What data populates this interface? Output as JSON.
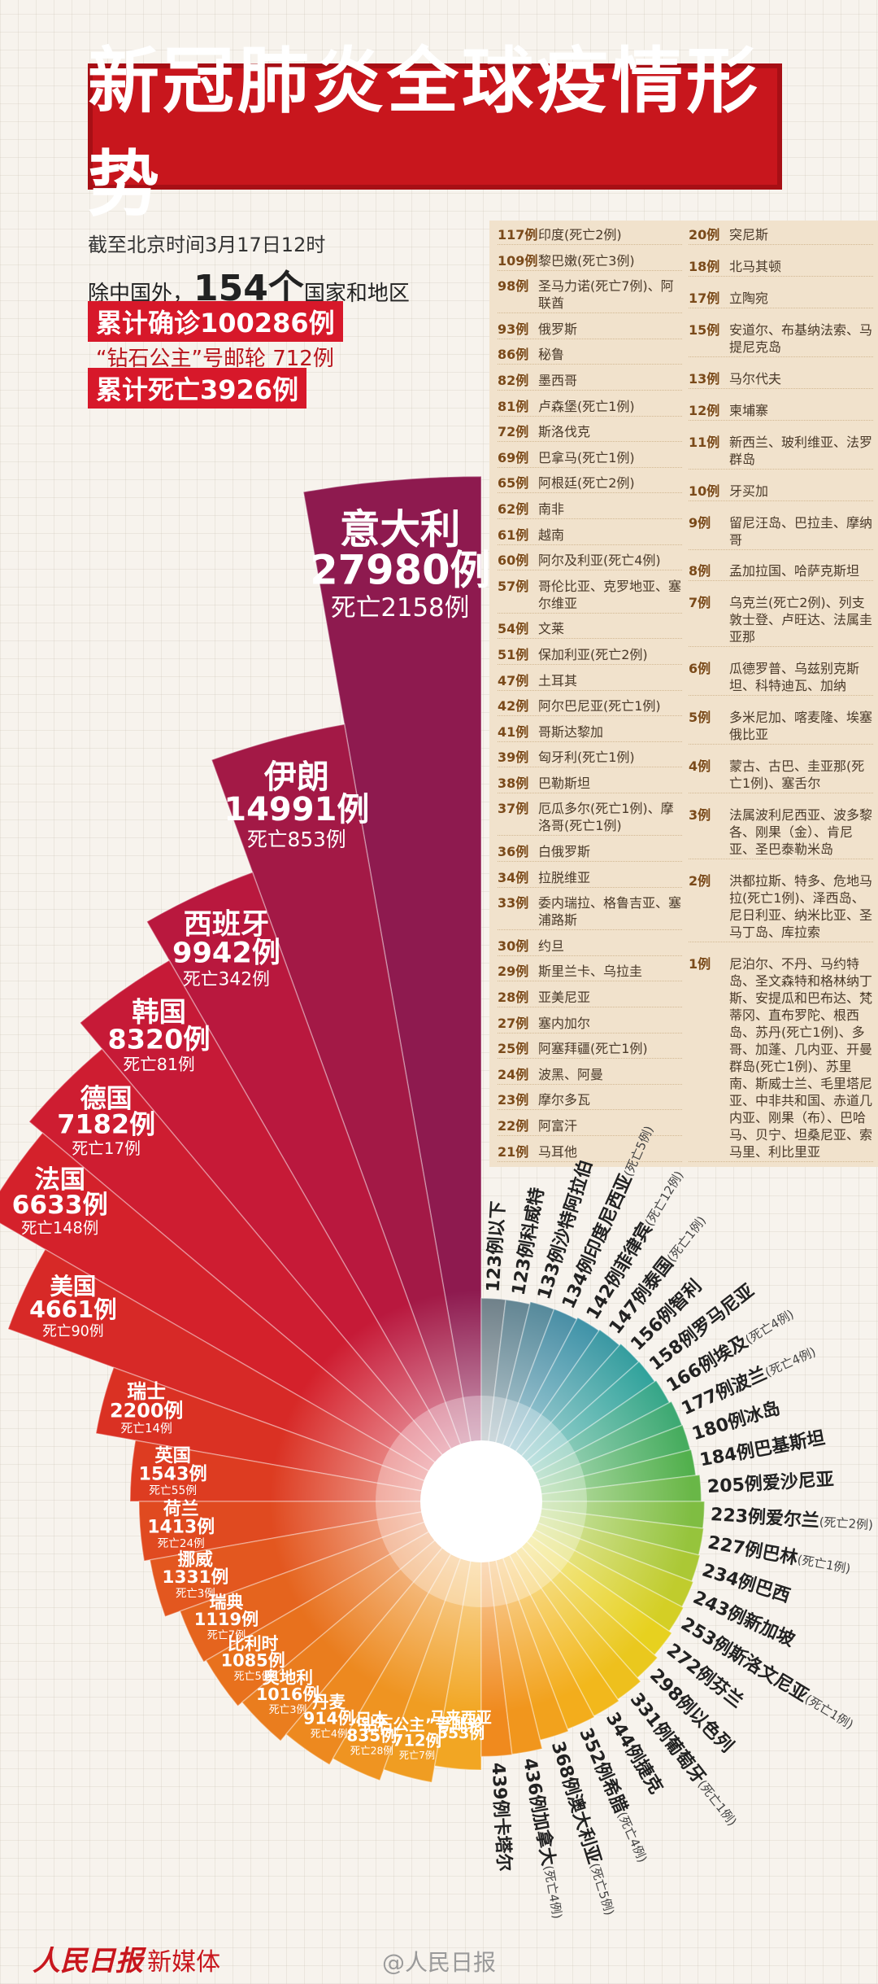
{
  "header": {
    "title": "新冠肺炎全球疫情形势"
  },
  "summary": {
    "time": "截至北京时间3月17日12时",
    "scope_prefix": "除中国外，",
    "scope_number": "154个",
    "scope_suffix": "国家和地区",
    "confirmed": "累计确诊100286例",
    "cruise": "“钻石公主”号邮轮 712例",
    "deaths": "累计死亡3926例"
  },
  "list": {
    "columns": [
      [
        {
          "count": "117例",
          "text": "印度(死亡2例)"
        },
        {
          "count": "109例",
          "text": "黎巴嫩(死亡3例)"
        },
        {
          "count": "98例",
          "text": "圣马力诺(死亡7例)、阿联酋"
        },
        {
          "count": "93例",
          "text": "俄罗斯"
        },
        {
          "count": "86例",
          "text": "秘鲁"
        },
        {
          "count": "82例",
          "text": "墨西哥"
        },
        {
          "count": "81例",
          "text": "卢森堡(死亡1例)"
        },
        {
          "count": "72例",
          "text": "斯洛伐克"
        },
        {
          "count": "69例",
          "text": "巴拿马(死亡1例)"
        },
        {
          "count": "65例",
          "text": "阿根廷(死亡2例)"
        },
        {
          "count": "62例",
          "text": "南非"
        },
        {
          "count": "61例",
          "text": "越南"
        },
        {
          "count": "60例",
          "text": "阿尔及利亚(死亡4例)"
        },
        {
          "count": "57例",
          "text": "哥伦比亚、克罗地亚、塞尔维亚"
        },
        {
          "count": "54例",
          "text": "文莱"
        },
        {
          "count": "51例",
          "text": "保加利亚(死亡2例)"
        },
        {
          "count": "47例",
          "text": "土耳其"
        },
        {
          "count": "42例",
          "text": "阿尔巴尼亚(死亡1例)"
        },
        {
          "count": "41例",
          "text": "哥斯达黎加"
        },
        {
          "count": "39例",
          "text": "匈牙利(死亡1例)"
        },
        {
          "count": "38例",
          "text": "巴勒斯坦"
        },
        {
          "count": "37例",
          "text": "厄瓜多尔(死亡1例)、摩洛哥(死亡1例)"
        },
        {
          "count": "36例",
          "text": "白俄罗斯"
        },
        {
          "count": "34例",
          "text": "拉脱维亚"
        },
        {
          "count": "33例",
          "text": "委内瑞拉、格鲁吉亚、塞浦路斯"
        },
        {
          "count": "30例",
          "text": "约旦"
        },
        {
          "count": "29例",
          "text": "斯里兰卡、乌拉圭"
        },
        {
          "count": "28例",
          "text": "亚美尼亚"
        },
        {
          "count": "27例",
          "text": "塞内加尔"
        },
        {
          "count": "25例",
          "text": "阿塞拜疆(死亡1例)"
        },
        {
          "count": "24例",
          "text": "波黑、阿曼"
        },
        {
          "count": "23例",
          "text": "摩尔多瓦"
        },
        {
          "count": "22例",
          "text": "阿富汗"
        },
        {
          "count": "21例",
          "text": "马耳他"
        }
      ],
      [
        {
          "count": "20例",
          "text": "突尼斯"
        },
        {
          "count": "18例",
          "text": "北马其顿"
        },
        {
          "count": "17例",
          "text": "立陶宛"
        },
        {
          "count": "15例",
          "text": "安道尔、布基纳法索、马提尼克岛"
        },
        {
          "count": "13例",
          "text": "马尔代夫"
        },
        {
          "count": "12例",
          "text": "柬埔寨"
        },
        {
          "count": "11例",
          "text": "新西兰、玻利维亚、法罗群岛"
        },
        {
          "count": "10例",
          "text": "牙买加"
        },
        {
          "count": "9例",
          "text": "留尼汪岛、巴拉圭、摩纳哥"
        },
        {
          "count": "8例",
          "text": "孟加拉国、哈萨克斯坦"
        },
        {
          "count": "7例",
          "text": "乌克兰(死亡2例)、列支敦士登、卢旺达、法属圭亚那"
        },
        {
          "count": "6例",
          "text": "瓜德罗普、乌兹别克斯坦、科特迪瓦、加纳"
        },
        {
          "count": "5例",
          "text": "多米尼加、喀麦隆、埃塞俄比亚"
        },
        {
          "count": "4例",
          "text": "蒙古、古巴、圭亚那(死亡1例)、塞舌尔"
        },
        {
          "count": "3例",
          "text": "法属波利尼西亚、波多黎各、刚果（金）、肯尼亚、圣巴泰勒米岛"
        },
        {
          "count": "2例",
          "text": "洪都拉斯、特多、危地马拉(死亡1例)、泽西岛、尼日利亚、纳米比亚、圣马丁岛、库拉索"
        },
        {
          "count": "1例",
          "text": "尼泊尔、不丹、马约特岛、圣文森特和格林纳丁斯、安提瓜和巴布达、梵蒂冈、直布罗陀、根西岛、苏丹(死亡1例)、多哥、加蓬、几内亚、开曼群岛(死亡1例)、苏里南、斯威士兰、毛里塔尼亚、中非共和国、赤道几内亚、刚果（布）、巴哈马、贝宁、坦桑尼亚、索马里、利比里亚"
        }
      ]
    ]
  },
  "chart_data": [
    {
      "type": "rose",
      "side": "left",
      "colors": [
        "#8e1a4f",
        "#c2183a",
        "#d4202c",
        "#db3322",
        "#e2531f",
        "#e8731d",
        "#ee9020",
        "#f2a623"
      ],
      "categories": [
        "意大利",
        "伊朗",
        "西班牙",
        "韩国",
        "德国",
        "法国",
        "美国",
        "瑞士",
        "英国",
        "荷兰",
        "挪威",
        "瑞典",
        "比利时",
        "奥地利",
        "丹麦",
        "日本",
        "“钻石公主”号邮轮",
        "马来西亚"
      ],
      "values": [
        27980,
        14991,
        9942,
        8320,
        7182,
        6633,
        4661,
        2200,
        1543,
        1413,
        1331,
        1119,
        1085,
        1016,
        914,
        835,
        712,
        553
      ],
      "value_labels": [
        "27980例",
        "14991例",
        "9942例",
        "8320例",
        "7182例",
        "6633例",
        "4661例",
        "2200例",
        "1543例",
        "1413例",
        "1331例",
        "1119例",
        "1085例",
        "1016例",
        "914例",
        "835例",
        "712例",
        "553例"
      ],
      "death_labels": [
        "死亡2158例",
        "死亡853例",
        "死亡342例",
        "死亡81例",
        "死亡17例",
        "死亡148例",
        "死亡90例",
        "死亡14例",
        "死亡55例",
        "死亡24例",
        "死亡3例",
        "死亡7例",
        "死亡5例",
        "死亡3例",
        "死亡4例",
        "死亡28例",
        "死亡7例",
        null
      ]
    },
    {
      "type": "rose",
      "side": "right",
      "colors": [
        "#6b7d86",
        "#3e8fa8",
        "#2fa39a",
        "#4cae4f",
        "#9cc63a",
        "#e6d21f",
        "#f4b41c",
        "#f08a1e"
      ],
      "categories": [
        null,
        "科威特",
        "沙特阿拉伯",
        "印度尼西亚",
        "菲律宾",
        "泰国",
        "智利",
        "罗马尼亚",
        "埃及",
        "波兰",
        "冰岛",
        "巴基斯坦",
        "爱沙尼亚",
        "爱尔兰",
        "巴林",
        "巴西",
        "新加坡",
        "斯洛文尼亚",
        "芬兰",
        "以色列",
        "葡萄牙",
        "捷克",
        "希腊",
        "澳大利亚",
        "加拿大",
        "卡塔尔"
      ],
      "values": [
        123,
        123,
        133,
        134,
        142,
        147,
        156,
        158,
        166,
        177,
        180,
        184,
        205,
        223,
        227,
        234,
        243,
        253,
        272,
        298,
        331,
        344,
        352,
        368,
        436,
        439
      ],
      "value_labels": [
        "123例以下",
        "123例",
        "133例",
        "134例",
        "142例",
        "147例",
        "156例",
        "158例",
        "166例",
        "177例",
        "180例",
        "184例",
        "205例",
        "223例",
        "227例",
        "234例",
        "243例",
        "253例",
        "272例",
        "298例",
        "331例",
        "344例",
        "352例",
        "368例",
        "436例",
        "439例"
      ],
      "death_labels": [
        null,
        null,
        null,
        "(死亡5例)",
        "(死亡12例)",
        "(死亡1例)",
        null,
        null,
        "(死亡4例)",
        "(死亡4例)",
        null,
        null,
        null,
        "(死亡2例)",
        "(死亡1例)",
        null,
        null,
        "(死亡1例)",
        null,
        null,
        "(死亡1例)",
        null,
        "(死亡4例)",
        "(死亡5例)",
        "(死亡4例)",
        null
      ]
    }
  ],
  "footer": {
    "logo": "人民日报",
    "logo_suffix": "新媒体",
    "watermark": "@人民日报"
  }
}
